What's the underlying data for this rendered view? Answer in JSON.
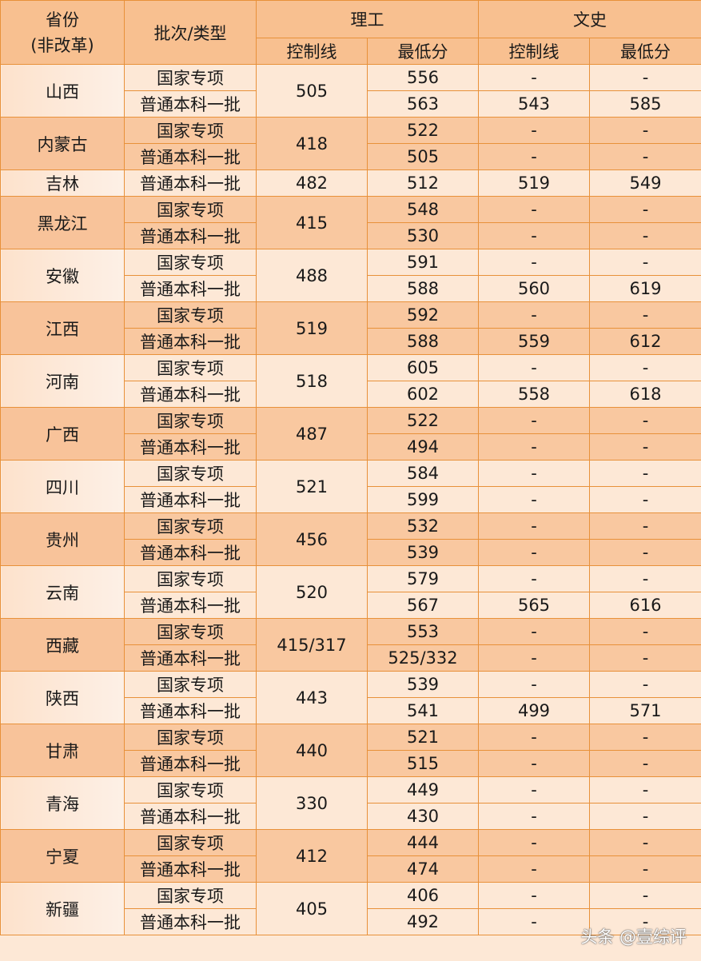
{
  "header": {
    "province": "省份\n(非改革)",
    "batch": "批次/类型",
    "science": "理工",
    "arts": "文史",
    "control_line": "控制线",
    "min_score": "最低分"
  },
  "rows": [
    {
      "province": "山西",
      "sci_line": "505",
      "subs": [
        {
          "batch": "国家专项",
          "sci_min": "556",
          "arts_line": "-",
          "arts_min": "-"
        },
        {
          "batch": "普通本科一批",
          "sci_min": "563",
          "arts_line": "543",
          "arts_min": "585"
        }
      ]
    },
    {
      "province": "内蒙古",
      "sci_line": "418",
      "subs": [
        {
          "batch": "国家专项",
          "sci_min": "522",
          "arts_line": "-",
          "arts_min": "-"
        },
        {
          "batch": "普通本科一批",
          "sci_min": "505",
          "arts_line": "-",
          "arts_min": "-"
        }
      ]
    },
    {
      "province": "吉林",
      "sci_line": "482",
      "subs": [
        {
          "batch": "普通本科一批",
          "sci_min": "512",
          "arts_line": "519",
          "arts_min": "549"
        }
      ]
    },
    {
      "province": "黑龙江",
      "sci_line": "415",
      "subs": [
        {
          "batch": "国家专项",
          "sci_min": "548",
          "arts_line": "-",
          "arts_min": "-"
        },
        {
          "batch": "普通本科一批",
          "sci_min": "530",
          "arts_line": "-",
          "arts_min": "-"
        }
      ]
    },
    {
      "province": "安徽",
      "sci_line": "488",
      "subs": [
        {
          "batch": "国家专项",
          "sci_min": "591",
          "arts_line": "-",
          "arts_min": "-"
        },
        {
          "batch": "普通本科一批",
          "sci_min": "588",
          "arts_line": "560",
          "arts_min": "619"
        }
      ]
    },
    {
      "province": "江西",
      "sci_line": "519",
      "subs": [
        {
          "batch": "国家专项",
          "sci_min": "592",
          "arts_line": "-",
          "arts_min": "-"
        },
        {
          "batch": "普通本科一批",
          "sci_min": "588",
          "arts_line": "559",
          "arts_min": "612"
        }
      ]
    },
    {
      "province": "河南",
      "sci_line": "518",
      "subs": [
        {
          "batch": "国家专项",
          "sci_min": "605",
          "arts_line": "-",
          "arts_min": "-"
        },
        {
          "batch": "普通本科一批",
          "sci_min": "602",
          "arts_line": "558",
          "arts_min": "618"
        }
      ]
    },
    {
      "province": "广西",
      "sci_line": "487",
      "subs": [
        {
          "batch": "国家专项",
          "sci_min": "522",
          "arts_line": "-",
          "arts_min": "-"
        },
        {
          "batch": "普通本科一批",
          "sci_min": "494",
          "arts_line": "-",
          "arts_min": "-"
        }
      ]
    },
    {
      "province": "四川",
      "sci_line": "521",
      "subs": [
        {
          "batch": "国家专项",
          "sci_min": "584",
          "arts_line": "-",
          "arts_min": "-"
        },
        {
          "batch": "普通本科一批",
          "sci_min": "599",
          "arts_line": "-",
          "arts_min": "-"
        }
      ]
    },
    {
      "province": "贵州",
      "sci_line": "456",
      "subs": [
        {
          "batch": "国家专项",
          "sci_min": "532",
          "arts_line": "-",
          "arts_min": "-"
        },
        {
          "batch": "普通本科一批",
          "sci_min": "539",
          "arts_line": "-",
          "arts_min": "-"
        }
      ]
    },
    {
      "province": "云南",
      "sci_line": "520",
      "subs": [
        {
          "batch": "国家专项",
          "sci_min": "579",
          "arts_line": "-",
          "arts_min": "-"
        },
        {
          "batch": "普通本科一批",
          "sci_min": "567",
          "arts_line": "565",
          "arts_min": "616"
        }
      ]
    },
    {
      "province": "西藏",
      "sci_line": "415/317",
      "subs": [
        {
          "batch": "国家专项",
          "sci_min": "553",
          "arts_line": "-",
          "arts_min": "-"
        },
        {
          "batch": "普通本科一批",
          "sci_min": "525/332",
          "arts_line": "-",
          "arts_min": "-"
        }
      ]
    },
    {
      "province": "陕西",
      "sci_line": "443",
      "subs": [
        {
          "batch": "国家专项",
          "sci_min": "539",
          "arts_line": "-",
          "arts_min": "-"
        },
        {
          "batch": "普通本科一批",
          "sci_min": "541",
          "arts_line": "499",
          "arts_min": "571"
        }
      ]
    },
    {
      "province": "甘肃",
      "sci_line": "440",
      "subs": [
        {
          "batch": "国家专项",
          "sci_min": "521",
          "arts_line": "-",
          "arts_min": "-"
        },
        {
          "batch": "普通本科一批",
          "sci_min": "515",
          "arts_line": "-",
          "arts_min": "-"
        }
      ]
    },
    {
      "province": "青海",
      "sci_line": "330",
      "subs": [
        {
          "batch": "国家专项",
          "sci_min": "449",
          "arts_line": "-",
          "arts_min": "-"
        },
        {
          "batch": "普通本科一批",
          "sci_min": "430",
          "arts_line": "-",
          "arts_min": "-"
        }
      ]
    },
    {
      "province": "宁夏",
      "sci_line": "412",
      "subs": [
        {
          "batch": "国家专项",
          "sci_min": "444",
          "arts_line": "-",
          "arts_min": "-"
        },
        {
          "batch": "普通本科一批",
          "sci_min": "474",
          "arts_line": "-",
          "arts_min": "-"
        }
      ]
    },
    {
      "province": "新疆",
      "sci_line": "405",
      "subs": [
        {
          "batch": "国家专项",
          "sci_min": "406",
          "arts_line": "-",
          "arts_min": "-"
        },
        {
          "batch": "普通本科一批",
          "sci_min": "492",
          "arts_line": "-",
          "arts_min": "-"
        }
      ]
    }
  ],
  "watermark": "头条 @壹综评",
  "colors": {
    "border": "#e8913a",
    "header": "#f8c090",
    "row_dark": "#f9c8a0",
    "row_light": "#fde8d6"
  }
}
